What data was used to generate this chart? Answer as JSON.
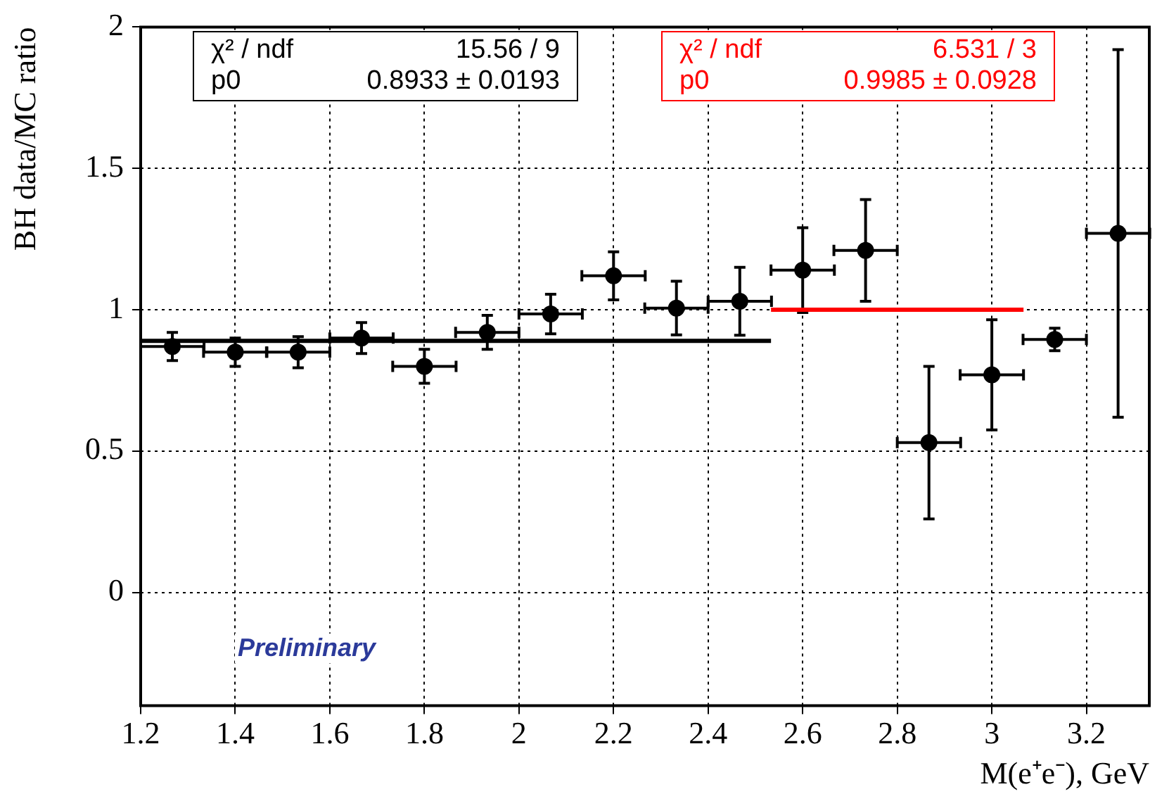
{
  "chart_data": {
    "type": "scatter",
    "xlabel": "M(e⁺e⁻), GeV",
    "ylabel": "BH data/MC ratio",
    "xlim": [
      1.2,
      3.333
    ],
    "xticks": [
      1.2,
      1.4,
      1.6,
      1.8,
      2,
      2.2,
      2.4,
      2.6,
      2.8,
      3,
      3.2
    ],
    "ylim": [
      -0.4,
      2
    ],
    "yticks": [
      0,
      0.5,
      1,
      1.5,
      2
    ],
    "grid": true,
    "legend": false,
    "marker": "circle",
    "series": [
      {
        "color": "#000000",
        "x": [
          1.267,
          1.4,
          1.533,
          1.667,
          1.8,
          1.933,
          2.067,
          2.2,
          2.333,
          2.467,
          2.6,
          2.733,
          2.867,
          3.0,
          3.133,
          3.267
        ],
        "values": [
          0.87,
          0.85,
          0.85,
          0.9,
          0.8,
          0.92,
          0.985,
          1.12,
          1.006,
          1.03,
          1.14,
          1.21,
          0.53,
          0.77,
          0.895,
          1.27
        ],
        "errors": [
          0.05,
          0.05,
          0.055,
          0.055,
          0.06,
          0.06,
          0.07,
          0.085,
          0.095,
          0.12,
          0.15,
          0.18,
          0.27,
          0.195,
          0.04,
          0.65
        ],
        "xerrors": [
          0.067,
          0.067,
          0.067,
          0.067,
          0.067,
          0.067,
          0.067,
          0.067,
          0.067,
          0.067,
          0.067,
          0.067,
          0.067,
          0.067,
          0.067,
          0.067
        ]
      },
      {
        "type": "line",
        "marker": "none",
        "color": "#000000",
        "x": [
          1.2,
          2.533
        ],
        "values": [
          0.89,
          0.89
        ]
      },
      {
        "type": "line",
        "marker": "none",
        "color": "#ff0000",
        "x": [
          2.533,
          3.067
        ],
        "values": [
          1.0,
          1.0
        ]
      }
    ],
    "annotations": [
      "χ² / ndf",
      "15.56 / 9",
      "p0",
      "0.8933 ± 0.0193",
      "χ² / ndf",
      "6.531 / 3",
      "p0",
      "0.9985 ± 0.0928",
      "Preliminary"
    ]
  }
}
